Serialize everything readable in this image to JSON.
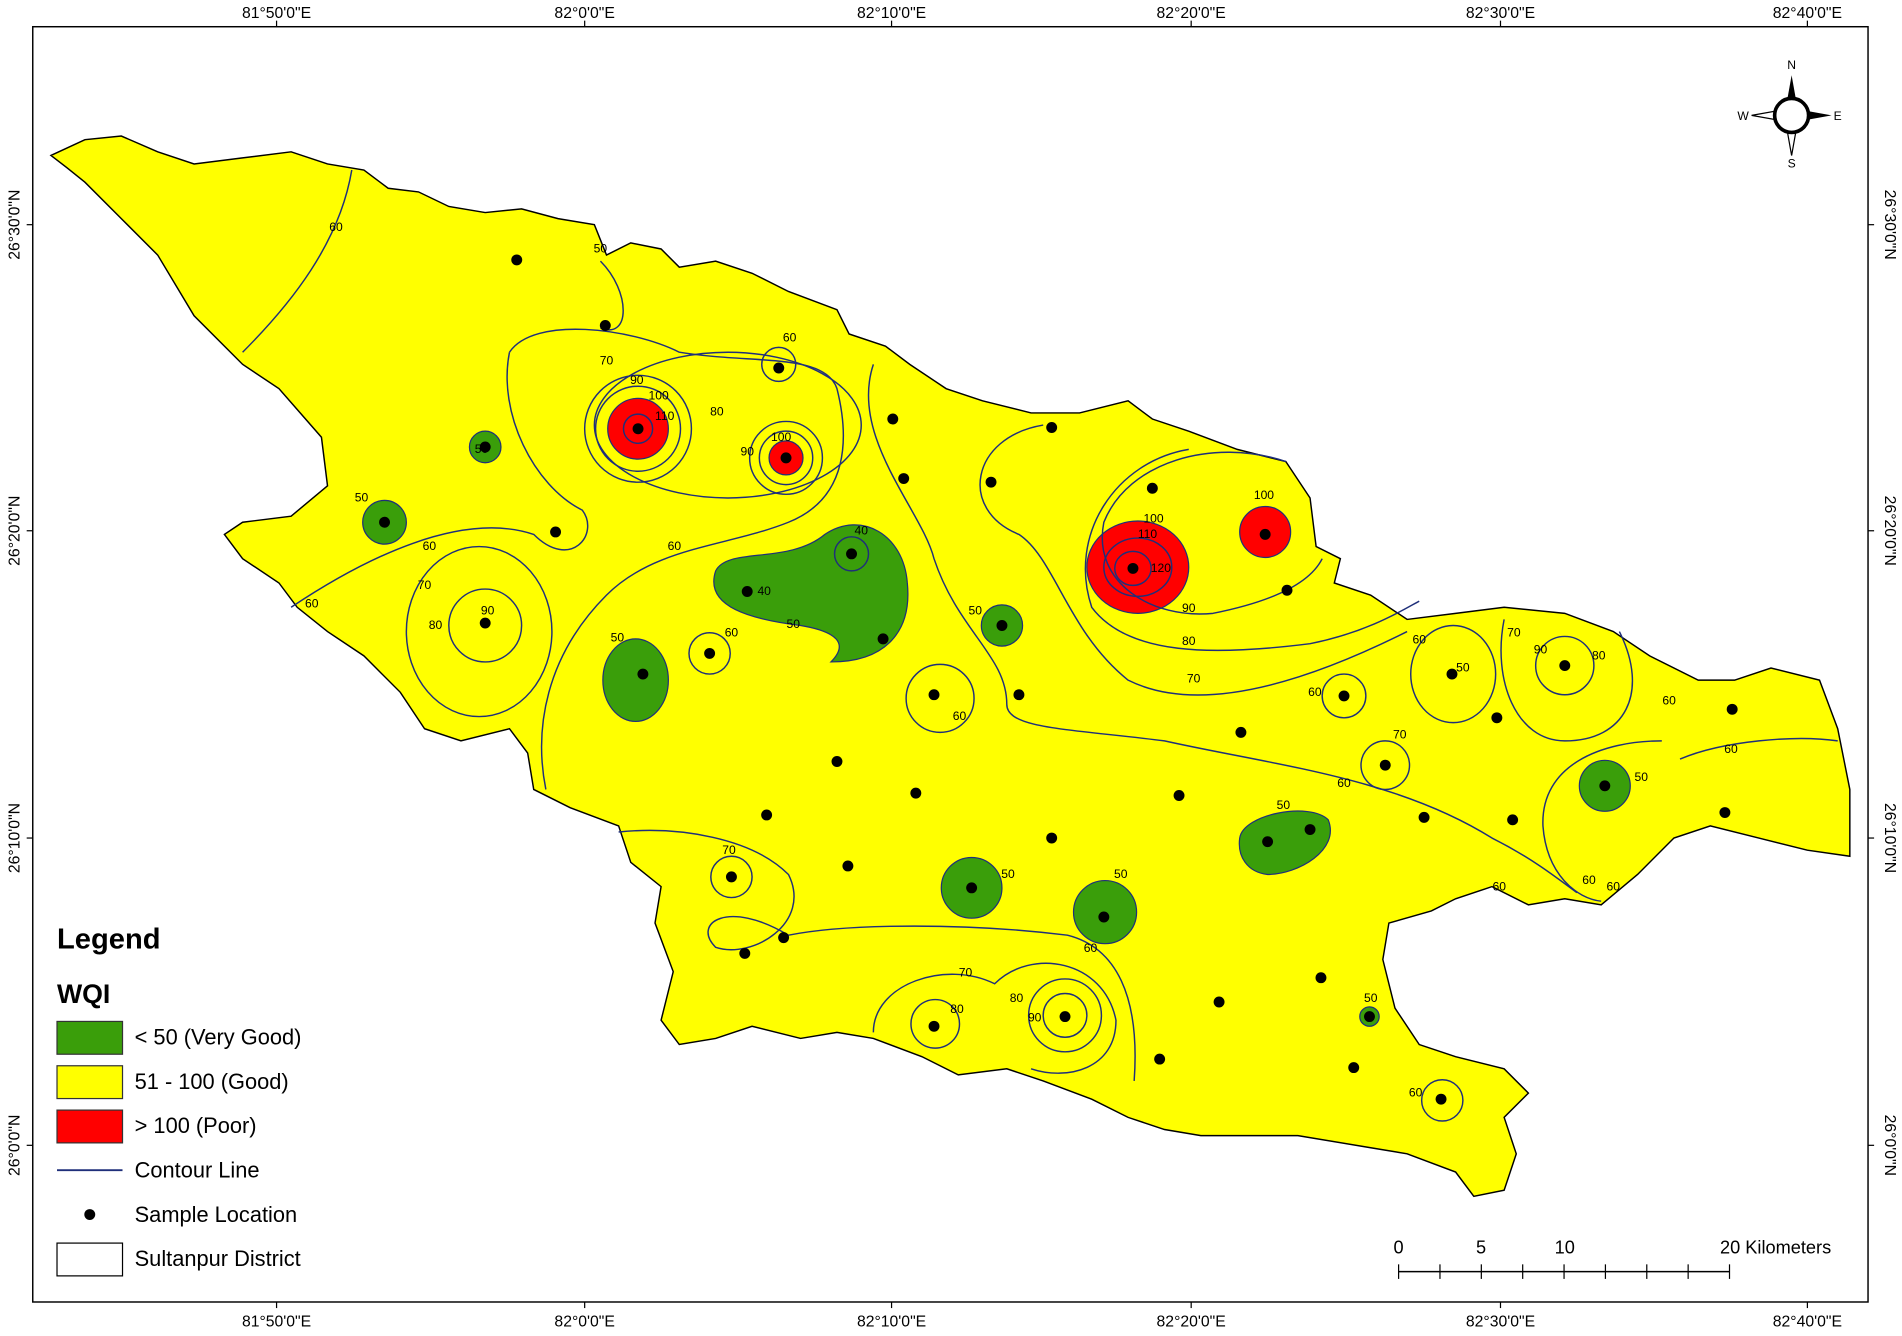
{
  "map": {
    "longitude_labels": [
      "81°50'0\"E",
      "82°0'0\"E",
      "82°10'0\"E",
      "82°20'0\"E",
      "82°30'0\"E",
      "82°40'0\"E"
    ],
    "latitude_labels": [
      "26°30'0\"N",
      "26°20'0\"N",
      "26°10'0\"N",
      "26°0'0\"N"
    ],
    "contour_labels": [
      "60",
      "50",
      "70",
      "90",
      "100",
      "110",
      "80",
      "90",
      "100",
      "60",
      "40",
      "40",
      "50",
      "60",
      "60",
      "60",
      "50",
      "50",
      "70",
      "80",
      "90",
      "50",
      "60",
      "50",
      "60",
      "100",
      "110",
      "120",
      "90",
      "80",
      "70",
      "100",
      "60",
      "70",
      "60",
      "50",
      "60",
      "70",
      "90",
      "80",
      "60",
      "60",
      "50",
      "60",
      "60",
      "60",
      "50",
      "50",
      "50",
      "60",
      "70",
      "70",
      "80",
      "80",
      "90",
      "50",
      "60"
    ],
    "legend": {
      "title": "Legend",
      "subtitle": "WQI",
      "items": [
        {
          "label": "< 50 (Very Good)",
          "color": "#3a9e0a"
        },
        {
          "label": "51 - 100 (Good)",
          "color": "#ffff00"
        },
        {
          "label": "> 100 (Poor)",
          "color": "#ff0000"
        },
        {
          "label": "Contour Line"
        },
        {
          "label": "Sample Location"
        },
        {
          "label": "Sultanpur District"
        }
      ]
    },
    "scale_bar": {
      "labels": [
        "0",
        "5",
        "10",
        "20 Kilometers"
      ]
    },
    "compass": {
      "n": "N",
      "s": "S",
      "e": "E",
      "w": "W"
    }
  }
}
